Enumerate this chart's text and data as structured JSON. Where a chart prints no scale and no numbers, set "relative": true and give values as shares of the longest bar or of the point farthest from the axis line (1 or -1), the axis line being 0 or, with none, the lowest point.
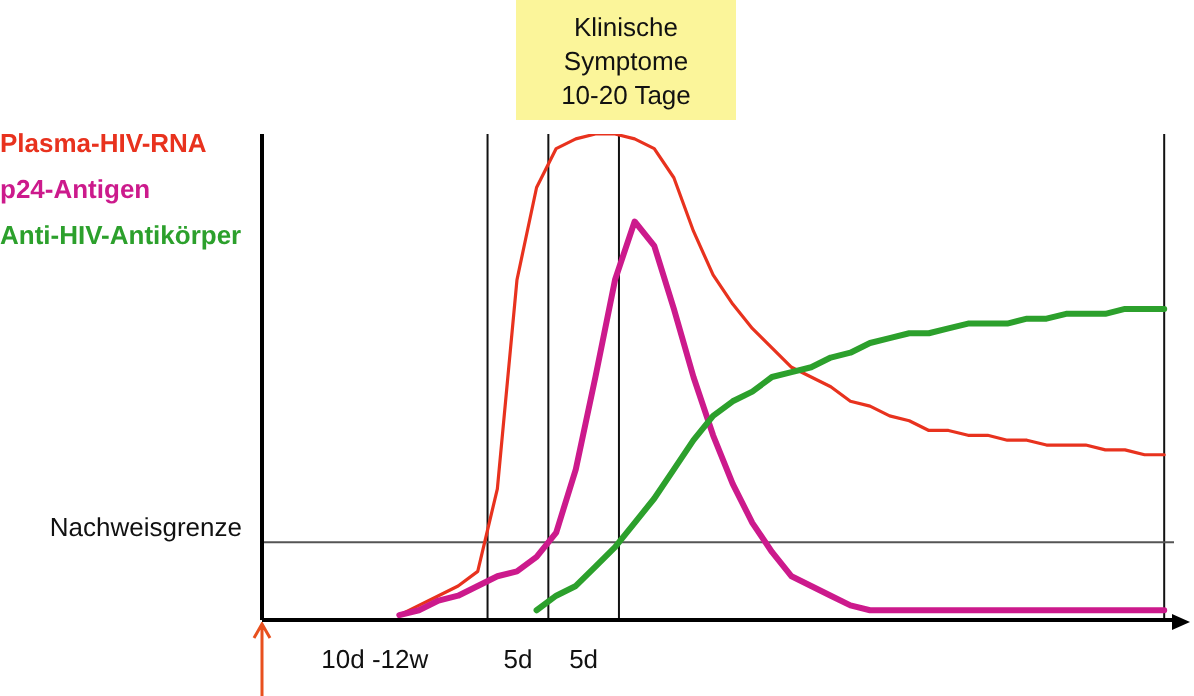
{
  "chart_data": {
    "type": "line",
    "relative": true,
    "grid": false,
    "marker": "none",
    "line_style": "solid",
    "categories": [
      null,
      null,
      null,
      null,
      null,
      null,
      null,
      null,
      null,
      null,
      null,
      null,
      null,
      null,
      null,
      null,
      null,
      null,
      null,
      null,
      null,
      null,
      null,
      null,
      null,
      null,
      null,
      null,
      null,
      null,
      null,
      null,
      null,
      null,
      null,
      null,
      null,
      null,
      null,
      null,
      null,
      null,
      null,
      null,
      null,
      null,
      null
    ],
    "annotations": [
      "Klinische\nSymptome\n10-20 Tage",
      "10d -12w",
      "5d",
      "5d"
    ],
    "ref_lines": [
      {
        "axis": "y",
        "value": 0.16,
        "label": "Nachweisgrenze"
      }
    ],
    "series": [
      {
        "name": "Plasma-HIV-RNA",
        "color": "#e8321e",
        "values": [
          null,
          null,
          null,
          null,
          null,
          null,
          null,
          0.01,
          0.03,
          0.05,
          0.07,
          0.1,
          0.27,
          0.7,
          0.89,
          0.97,
          0.99,
          1,
          1,
          0.99,
          0.97,
          0.91,
          0.8,
          0.71,
          0.65,
          0.6,
          0.56,
          0.52,
          0.5,
          0.48,
          0.45,
          0.44,
          0.42,
          0.41,
          0.39,
          0.39,
          0.38,
          0.38,
          0.37,
          0.37,
          0.36,
          0.36,
          0.36,
          0.35,
          0.35,
          0.34,
          0.34
        ]
      },
      {
        "name": "p24-Antigen",
        "color": "#cc1a8c",
        "values": [
          null,
          null,
          null,
          null,
          null,
          null,
          null,
          0.01,
          0.02,
          0.04,
          0.05,
          0.07,
          0.09,
          0.1,
          0.13,
          0.18,
          0.31,
          0.5,
          0.7,
          0.82,
          0.77,
          0.64,
          0.5,
          0.38,
          0.28,
          0.2,
          0.14,
          0.09,
          0.07,
          0.05,
          0.03,
          0.02,
          0.02,
          0.02,
          0.02,
          0.02,
          0.02,
          0.02,
          0.02,
          0.02,
          0.02,
          0.02,
          0.02,
          0.02,
          0.02,
          0.02,
          0.02
        ]
      },
      {
        "name": "Anti-HIV-Antikörper",
        "color": "#2ca02c",
        "values": [
          null,
          null,
          null,
          null,
          null,
          null,
          null,
          null,
          null,
          null,
          null,
          null,
          null,
          null,
          0.02,
          0.05,
          0.07,
          0.11,
          0.15,
          0.2,
          0.25,
          0.31,
          0.37,
          0.42,
          0.45,
          0.47,
          0.5,
          0.51,
          0.52,
          0.54,
          0.55,
          0.57,
          0.58,
          0.59,
          0.59,
          0.6,
          0.61,
          0.61,
          0.61,
          0.62,
          0.62,
          0.63,
          0.63,
          0.63,
          0.64,
          0.64,
          0.64
        ]
      }
    ]
  }
}
